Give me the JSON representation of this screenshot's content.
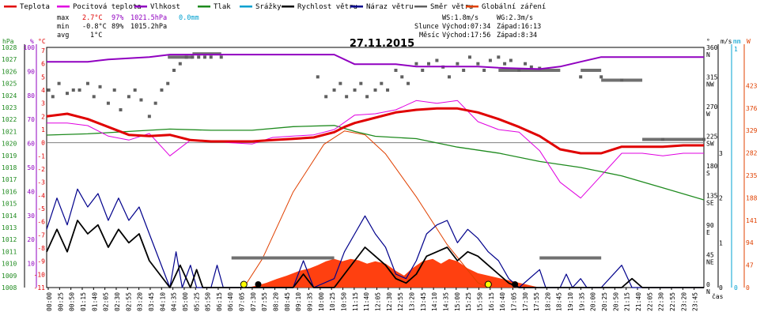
{
  "chart_data": {
    "type": "line",
    "title": "27.11.2015",
    "legend": [
      {
        "name": "Teplota",
        "color": "#e00000"
      },
      {
        "name": "Pocitová teplota",
        "color": "#e000e0"
      },
      {
        "name": "Vlhkost",
        "color": "#9000c0"
      },
      {
        "name": "Tlak",
        "color": "#1e8a1e"
      },
      {
        "name": "Srážky",
        "color": "#00a0d0"
      },
      {
        "name": "Rychlost větru",
        "color": "#000000"
      },
      {
        "name": "Náraz větru",
        "color": "#00008b"
      },
      {
        "name": "Směr větru",
        "color": "#606060"
      },
      {
        "name": "Globální záření",
        "color": "#e04000"
      }
    ],
    "stats": {
      "max_label": "max",
      "min_label": "min",
      "avg_label": "avg",
      "max_temp": "2.7°C",
      "max_hum": "97%",
      "max_press": "1021.5hPa",
      "max_rain": "0.0mm",
      "min_temp": "-0.8°C",
      "min_hum": "89%",
      "min_press": "1015.2hPa",
      "avg_temp": "1°C",
      "ws": "WS:1.8m/s",
      "wg": "WG:2.3m/s",
      "sun_label": "Slunce",
      "sunrise": "Východ:07:34",
      "sunset": "Západ:16:13",
      "moon_label": "Měsíc",
      "moonrise": "Východ:17:56",
      "moonset": "Západ:8:34"
    },
    "axes": {
      "hpa_unit": "hPa",
      "pct_unit": "%",
      "temp_unit": "°C",
      "wind_unit": "m/s",
      "dir_unit": "°",
      "mm_unit": "mm",
      "w_unit": "W",
      "time_label": "čas",
      "hpa_ticks": [
        "1008",
        "1009",
        "1010",
        "1011",
        "1012",
        "1013",
        "1014",
        "1015",
        "1016",
        "1017",
        "1018",
        "1019",
        "1020",
        "1021",
        "1022",
        "1023",
        "1024",
        "1025",
        "1026",
        "1027",
        "1028"
      ],
      "pct_ticks": [
        "",
        "",
        "10",
        "",
        "20",
        "",
        "30",
        "",
        "40",
        "",
        "50",
        "",
        "60",
        "",
        "70",
        "",
        "80",
        "",
        "90",
        "",
        "100"
      ],
      "temp_ticks": [
        "-11",
        "-10",
        "-9",
        "-8",
        "-7",
        "-6",
        "-5",
        "-4",
        "-3",
        "-2",
        "-1",
        "0",
        "1",
        "2",
        "3",
        "4",
        "5",
        "6",
        "7"
      ],
      "dir_ticks": [
        {
          "value": 0,
          "deg": "0",
          "name": "N"
        },
        {
          "value": 45,
          "deg": "45",
          "name": "NE"
        },
        {
          "value": 90,
          "deg": "90",
          "name": "E"
        },
        {
          "value": 135,
          "deg": "135",
          "name": "SE"
        },
        {
          "value": 180,
          "deg": "180",
          "name": "S"
        },
        {
          "value": 225,
          "deg": "225",
          "name": "SW"
        },
        {
          "value": 270,
          "deg": "270",
          "name": "W"
        },
        {
          "value": 315,
          "deg": "315",
          "name": "NW"
        },
        {
          "value": 360,
          "deg": "360",
          "name": "N"
        }
      ],
      "wind_ticks": [
        "0",
        "1",
        "2",
        "3"
      ],
      "mm_ticks": [
        "0",
        "1"
      ],
      "w_ticks": [
        "0",
        "47",
        "94",
        "141",
        "188",
        "235",
        "282",
        "329",
        "376",
        "423"
      ],
      "time_ticks": [
        "00:00",
        "00:25",
        "00:50",
        "01:15",
        "01:40",
        "02:05",
        "02:30",
        "02:55",
        "03:20",
        "03:45",
        "04:10",
        "04:35",
        "05:00",
        "05:25",
        "05:50",
        "06:15",
        "06:40",
        "07:05",
        "07:30",
        "07:55",
        "08:20",
        "08:45",
        "09:10",
        "09:35",
        "10:00",
        "10:25",
        "10:50",
        "11:15",
        "11:40",
        "12:05",
        "12:30",
        "12:55",
        "13:20",
        "13:45",
        "14:10",
        "14:35",
        "15:00",
        "15:25",
        "15:50",
        "16:15",
        "16:40",
        "17:05",
        "17:30",
        "17:55",
        "18:20",
        "18:45",
        "19:10",
        "19:35",
        "20:00",
        "20:25",
        "20:50",
        "21:15",
        "21:40",
        "22:05",
        "22:30",
        "22:55",
        "23:20",
        "23:45"
      ]
    },
    "series_temp": [
      [
        0,
        2
      ],
      [
        1,
        2.2
      ],
      [
        2,
        1.8
      ],
      [
        3,
        1.2
      ],
      [
        4,
        0.6
      ],
      [
        5,
        0.5
      ],
      [
        6,
        0.6
      ],
      [
        7,
        0.2
      ],
      [
        8,
        0.1
      ],
      [
        9,
        0.1
      ],
      [
        10,
        0.1
      ],
      [
        11,
        0.2
      ],
      [
        12,
        0.3
      ],
      [
        13,
        0.4
      ],
      [
        14,
        0.8
      ],
      [
        14.5,
        1.2
      ],
      [
        15,
        1.5
      ],
      [
        16,
        1.9
      ],
      [
        17,
        2.3
      ],
      [
        18,
        2.5
      ],
      [
        19,
        2.6
      ],
      [
        20,
        2.6
      ],
      [
        21,
        2.3
      ],
      [
        22,
        1.8
      ],
      [
        23,
        1.2
      ],
      [
        24,
        0.5
      ],
      [
        25,
        -0.5
      ],
      [
        26,
        -0.8
      ],
      [
        27,
        -0.8
      ],
      [
        28,
        -0.3
      ],
      [
        29,
        -0.3
      ],
      [
        30,
        -0.3
      ],
      [
        31,
        -0.2
      ],
      [
        32,
        -0.2
      ]
    ],
    "series_feels": [
      [
        0,
        1.5
      ],
      [
        1,
        1.5
      ],
      [
        2,
        1.3
      ],
      [
        3,
        0.5
      ],
      [
        4,
        0.2
      ],
      [
        5,
        0.7
      ],
      [
        6,
        -1
      ],
      [
        7,
        0.2
      ],
      [
        8,
        0.1
      ],
      [
        9,
        0
      ],
      [
        10,
        -0.1
      ],
      [
        11,
        0.4
      ],
      [
        12,
        0.5
      ],
      [
        13,
        0.6
      ],
      [
        14,
        1
      ],
      [
        15,
        2.1
      ],
      [
        16,
        2.2
      ],
      [
        17,
        2.5
      ],
      [
        18,
        3.2
      ],
      [
        19,
        3
      ],
      [
        20,
        3.2
      ],
      [
        21,
        1.6
      ],
      [
        22,
        1
      ],
      [
        23,
        0.8
      ],
      [
        24,
        -0.6
      ],
      [
        25,
        -3
      ],
      [
        26,
        -4.2
      ],
      [
        27,
        -2.5
      ],
      [
        28,
        -0.8
      ],
      [
        29,
        -0.8
      ],
      [
        30,
        -1
      ],
      [
        31,
        -0.8
      ],
      [
        32,
        -0.8
      ]
    ],
    "series_humidity": [
      [
        0,
        94
      ],
      [
        2,
        94
      ],
      [
        3,
        95
      ],
      [
        4,
        95.5
      ],
      [
        5,
        96
      ],
      [
        6,
        97
      ],
      [
        14,
        97
      ],
      [
        15,
        93
      ],
      [
        17,
        93
      ],
      [
        18,
        92
      ],
      [
        20,
        92
      ],
      [
        21,
        92
      ],
      [
        22,
        91.5
      ],
      [
        24,
        91
      ],
      [
        25,
        92
      ],
      [
        26,
        94
      ],
      [
        27,
        96
      ],
      [
        32,
        96
      ]
    ],
    "series_pressure": [
      [
        0,
        1020.7
      ],
      [
        2,
        1020.8
      ],
      [
        4,
        1021
      ],
      [
        6,
        1021.2
      ],
      [
        8,
        1021.1
      ],
      [
        10,
        1021.1
      ],
      [
        12,
        1021.4
      ],
      [
        14,
        1021.5
      ],
      [
        15,
        1021
      ],
      [
        16,
        1020.6
      ],
      [
        18,
        1020.4
      ],
      [
        20,
        1019.7
      ],
      [
        22,
        1019.2
      ],
      [
        24,
        1018.5
      ],
      [
        26,
        1018
      ],
      [
        28,
        1017.3
      ],
      [
        30,
        1016.3
      ],
      [
        32,
        1015.3
      ]
    ],
    "series_wind": [
      [
        0,
        0.8
      ],
      [
        0.5,
        1.3
      ],
      [
        1,
        0.8
      ],
      [
        1.5,
        1.5
      ],
      [
        2,
        1.2
      ],
      [
        2.5,
        1.4
      ],
      [
        3,
        0.9
      ],
      [
        3.5,
        1.3
      ],
      [
        4,
        1
      ],
      [
        4.5,
        1.2
      ],
      [
        5,
        0.6
      ],
      [
        5.5,
        0.3
      ],
      [
        6,
        0
      ],
      [
        6.5,
        0.5
      ],
      [
        7,
        0
      ],
      [
        7.3,
        0.4
      ],
      [
        7.6,
        0
      ],
      [
        8,
        0
      ],
      [
        9,
        0
      ],
      [
        12,
        0
      ],
      [
        12.5,
        0.3
      ],
      [
        13,
        0
      ],
      [
        14,
        0
      ],
      [
        14.5,
        0.3
      ],
      [
        15,
        0.6
      ],
      [
        15.5,
        0.9
      ],
      [
        16,
        0.7
      ],
      [
        16.5,
        0.5
      ],
      [
        17,
        0.2
      ],
      [
        17.5,
        0.1
      ],
      [
        18,
        0.3
      ],
      [
        18.5,
        0.7
      ],
      [
        19,
        0.8
      ],
      [
        19.5,
        0.9
      ],
      [
        20,
        0.6
      ],
      [
        20.5,
        0.8
      ],
      [
        21,
        0.7
      ],
      [
        21.5,
        0.5
      ],
      [
        22,
        0.3
      ],
      [
        22.5,
        0.1
      ],
      [
        23,
        0
      ],
      [
        28,
        0
      ],
      [
        28.5,
        0.2
      ],
      [
        29,
        0
      ],
      [
        32,
        0
      ]
    ],
    "series_gust": [
      [
        0,
        1.3
      ],
      [
        0.5,
        2
      ],
      [
        1,
        1.4
      ],
      [
        1.5,
        2.2
      ],
      [
        2,
        1.8
      ],
      [
        2.5,
        2.1
      ],
      [
        3,
        1.5
      ],
      [
        3.5,
        2
      ],
      [
        4,
        1.5
      ],
      [
        4.5,
        1.8
      ],
      [
        5,
        1.2
      ],
      [
        5.5,
        0.6
      ],
      [
        6,
        0
      ],
      [
        6.3,
        0.8
      ],
      [
        6.6,
        0
      ],
      [
        7,
        0.5
      ],
      [
        7.3,
        0
      ],
      [
        8,
        0
      ],
      [
        8.3,
        0.5
      ],
      [
        8.6,
        0
      ],
      [
        9,
        0
      ],
      [
        12,
        0
      ],
      [
        12.5,
        0.6
      ],
      [
        13,
        0
      ],
      [
        14,
        0.2
      ],
      [
        14.5,
        0.8
      ],
      [
        15,
        1.2
      ],
      [
        15.5,
        1.6
      ],
      [
        16,
        1.2
      ],
      [
        16.5,
        0.9
      ],
      [
        17,
        0.3
      ],
      [
        17.5,
        0.2
      ],
      [
        18,
        0.6
      ],
      [
        18.5,
        1.2
      ],
      [
        19,
        1.4
      ],
      [
        19.5,
        1.5
      ],
      [
        20,
        1
      ],
      [
        20.5,
        1.3
      ],
      [
        21,
        1.1
      ],
      [
        21.5,
        0.8
      ],
      [
        22,
        0.6
      ],
      [
        22.5,
        0.2
      ],
      [
        23,
        0
      ],
      [
        24,
        0.4
      ],
      [
        24.3,
        0
      ],
      [
        25,
        0
      ],
      [
        25.3,
        0.3
      ],
      [
        25.6,
        0
      ],
      [
        26,
        0.2
      ],
      [
        26.3,
        0
      ],
      [
        27,
        0
      ],
      [
        28,
        0.5
      ],
      [
        28.5,
        0
      ],
      [
        32,
        0
      ]
    ],
    "series_dir": [
      [
        0.1,
        300
      ],
      [
        0.3,
        290
      ],
      [
        0.6,
        310
      ],
      [
        1,
        295
      ],
      [
        1.3,
        300
      ],
      [
        1.6,
        300
      ],
      [
        2,
        310
      ],
      [
        2.3,
        290
      ],
      [
        2.6,
        305
      ],
      [
        3,
        280
      ],
      [
        3.3,
        300
      ],
      [
        3.6,
        270
      ],
      [
        4,
        290
      ],
      [
        4.3,
        300
      ],
      [
        4.6,
        285
      ],
      [
        5,
        260
      ],
      [
        5.3,
        280
      ],
      [
        5.6,
        300
      ],
      [
        5.9,
        310
      ],
      [
        6.2,
        330
      ],
      [
        6.5,
        340
      ],
      [
        6.8,
        350
      ],
      [
        7.1,
        350
      ],
      [
        7.4,
        350
      ],
      [
        7.7,
        350
      ],
      [
        8,
        350
      ],
      [
        8.5,
        350
      ],
      [
        13.2,
        320
      ],
      [
        13.6,
        290
      ],
      [
        14,
        300
      ],
      [
        14.3,
        310
      ],
      [
        14.6,
        290
      ],
      [
        15,
        300
      ],
      [
        15.3,
        310
      ],
      [
        15.6,
        290
      ],
      [
        16,
        300
      ],
      [
        16.3,
        310
      ],
      [
        16.6,
        300
      ],
      [
        17,
        330
      ],
      [
        17.3,
        320
      ],
      [
        17.6,
        310
      ],
      [
        18,
        340
      ],
      [
        18.3,
        330
      ],
      [
        18.6,
        340
      ],
      [
        19,
        345
      ],
      [
        19.3,
        335
      ],
      [
        19.6,
        320
      ],
      [
        20,
        340
      ],
      [
        20.3,
        330
      ],
      [
        20.6,
        350
      ],
      [
        21,
        340
      ],
      [
        21.3,
        330
      ],
      [
        21.6,
        345
      ],
      [
        22,
        350
      ],
      [
        22.3,
        340
      ],
      [
        22.6,
        345
      ],
      [
        23,
        330
      ],
      [
        23.3,
        340
      ],
      [
        23.6,
        335
      ],
      [
        24,
        333
      ],
      [
        26,
        320
      ],
      [
        27,
        320
      ],
      [
        28,
        315
      ],
      [
        30,
        225
      ],
      [
        32,
        225
      ]
    ],
    "dir_bars": [
      [
        5.9,
        7.1,
        350
      ],
      [
        7.1,
        8.5,
        355
      ],
      [
        9,
        14,
        45
      ],
      [
        22,
        25,
        330
      ],
      [
        26,
        27,
        330
      ],
      [
        27,
        29,
        315
      ],
      [
        29,
        32,
        225
      ],
      [
        24,
        27,
        45
      ],
      [
        24,
        25,
        330
      ]
    ],
    "series_solar": [
      [
        9.8,
        0
      ],
      [
        10.3,
        5
      ],
      [
        10.7,
        10
      ],
      [
        11.2,
        18
      ],
      [
        11.7,
        25
      ],
      [
        12.3,
        35
      ],
      [
        12.8,
        40
      ],
      [
        13.2,
        47
      ],
      [
        13.6,
        55
      ],
      [
        14,
        60
      ],
      [
        14.4,
        55
      ],
      [
        14.8,
        60
      ],
      [
        15.2,
        57
      ],
      [
        15.6,
        50
      ],
      [
        16,
        55
      ],
      [
        16.5,
        50
      ],
      [
        17,
        35
      ],
      [
        17.4,
        25
      ],
      [
        17.8,
        40
      ],
      [
        18.3,
        55
      ],
      [
        18.8,
        60
      ],
      [
        19.2,
        50
      ],
      [
        19.6,
        60
      ],
      [
        20,
        55
      ],
      [
        20.5,
        40
      ],
      [
        21,
        30
      ],
      [
        21.5,
        25
      ],
      [
        22,
        20
      ],
      [
        22.5,
        15
      ],
      [
        23,
        10
      ],
      [
        23.5,
        5
      ],
      [
        24,
        0
      ]
    ],
    "series_solar_max": [
      [
        9.6,
        0
      ],
      [
        10.5,
        60
      ],
      [
        12,
        200
      ],
      [
        13.5,
        300
      ],
      [
        14.5,
        328
      ],
      [
        15.5,
        320
      ],
      [
        16.5,
        280
      ],
      [
        18,
        190
      ],
      [
        19.5,
        90
      ],
      [
        21,
        10
      ],
      [
        21.5,
        0
      ]
    ],
    "markers": [
      {
        "type": "sun",
        "x": 9.6
      },
      {
        "type": "sun",
        "x": 21.5
      },
      {
        "type": "moon",
        "x": 10.3
      },
      {
        "type": "moon",
        "x": 22.8
      }
    ]
  }
}
